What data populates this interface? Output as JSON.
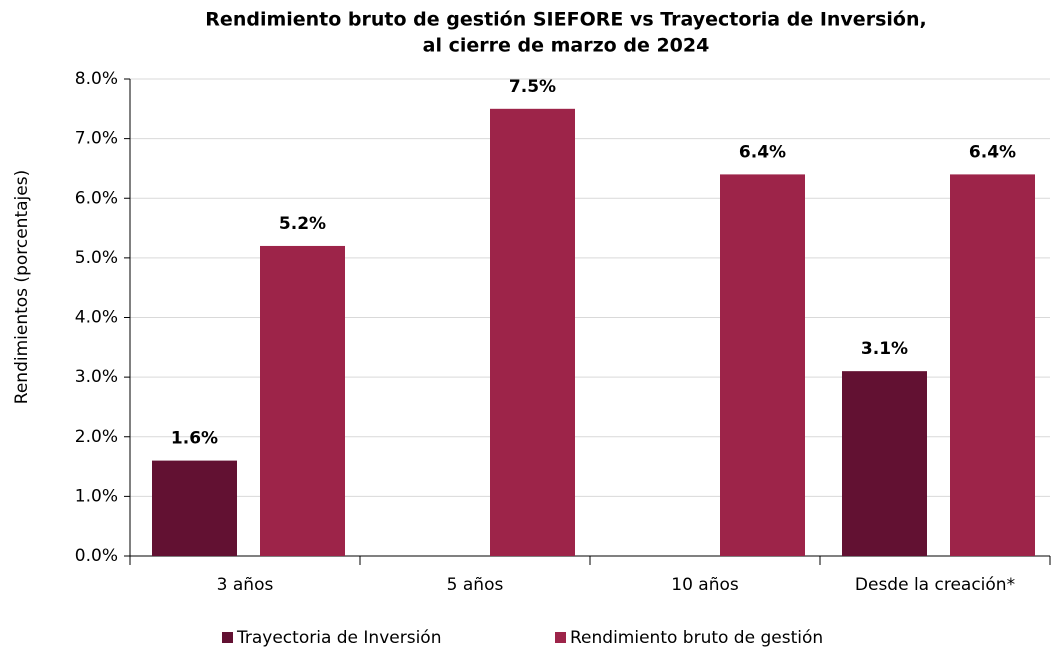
{
  "chart_data": {
    "type": "bar",
    "title": [
      "Rendimiento bruto de gestión SIEFORE vs Trayectoria de Inversión,",
      "al cierre de marzo de 2024"
    ],
    "y_label": "Rendimientos (porcentajes)",
    "categories": [
      "3 años",
      "5 años",
      "10 años",
      "Desde la creación*"
    ],
    "series": [
      {
        "name": "Trayectoria de Inversión",
        "color": "#621132",
        "values": [
          1.6,
          null,
          null,
          3.1
        ],
        "value_labels": [
          "1.6%",
          null,
          null,
          "3.1%"
        ]
      },
      {
        "name": "Rendimiento bruto de gestión",
        "color": "#9d2449",
        "values": [
          5.2,
          7.5,
          6.4,
          6.4
        ],
        "value_labels": [
          "5.2%",
          "7.5%",
          "6.4%",
          "6.4%"
        ]
      }
    ],
    "ylim": [
      0,
      8
    ],
    "yticks": [
      {
        "value": 0,
        "label": "0.0%"
      },
      {
        "value": 1,
        "label": "1.0%"
      },
      {
        "value": 2,
        "label": "2.0%"
      },
      {
        "value": 3,
        "label": "3.0%"
      },
      {
        "value": 4,
        "label": "4.0%"
      },
      {
        "value": 5,
        "label": "5.0%"
      },
      {
        "value": 6,
        "label": "6.0%"
      },
      {
        "value": 7,
        "label": "7.0%"
      },
      {
        "value": 8,
        "label": "8.0%"
      }
    ],
    "grid": true
  }
}
